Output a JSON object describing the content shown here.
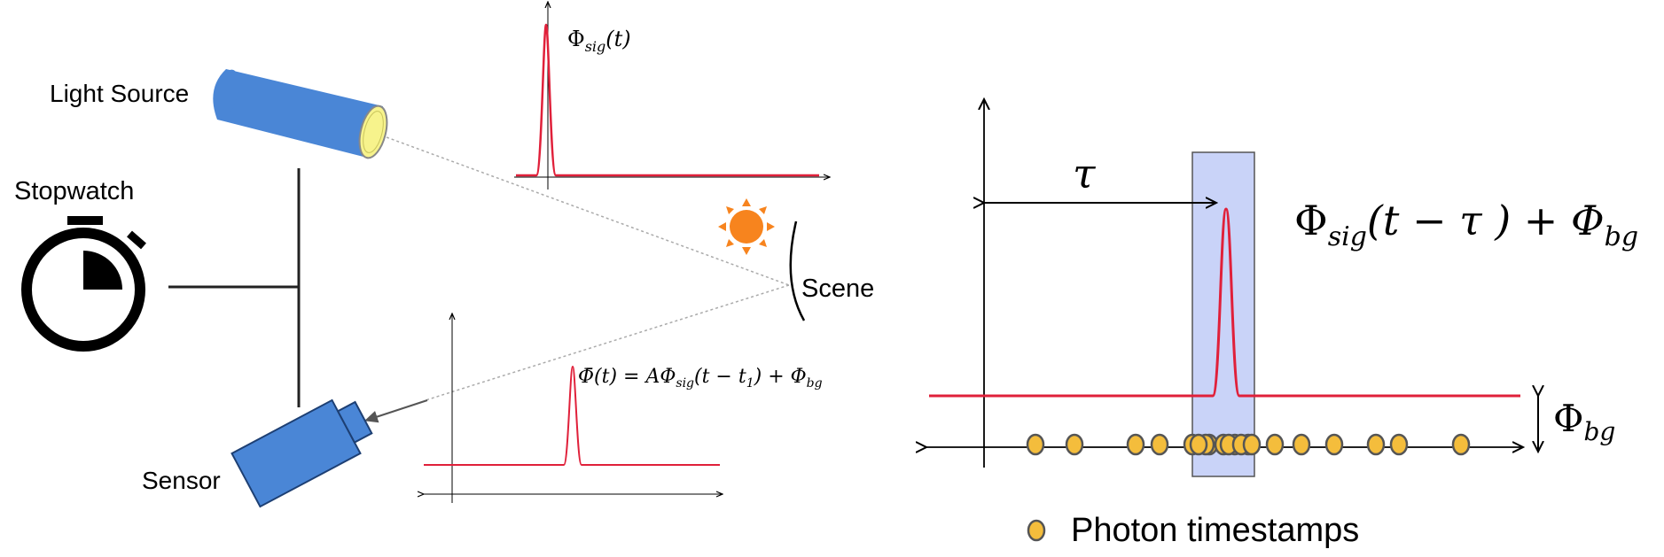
{
  "left_panel": {
    "light_source_label": "Light Source",
    "stopwatch_label": "Stopwatch",
    "scene_label": "Scene",
    "sensor_label": "Sensor",
    "emitted_signal": {
      "symbol": "Φ",
      "sub": "sig",
      "arg": "(t)"
    },
    "received_signal": {
      "lhs": "Φ̄(t) = AΦ",
      "sub1": "sig",
      "mid": "(t − t",
      "sub2": "1",
      "rhs": ") + Φ",
      "sub3": "bg"
    }
  },
  "right_panel": {
    "tau_label": "τ",
    "signal_expr": {
      "phi": "Φ",
      "sub": "sig",
      "arg": "(t − τ ) + Φ",
      "sub2": "bg"
    },
    "background_label": {
      "phi": "Φ",
      "sub": "bg"
    },
    "legend_label": "Photon timestamps"
  },
  "colors": {
    "signal_red": "#e0203a",
    "device_blue": "#4a86d6",
    "lens_yellow": "#f7f38c",
    "sun_orange": "#f7841e",
    "window_fill": "#c9d3f8",
    "photon_fill": "#f4bd3c",
    "photon_stroke": "#555555"
  },
  "photon_timestamps": {
    "count": 20
  }
}
